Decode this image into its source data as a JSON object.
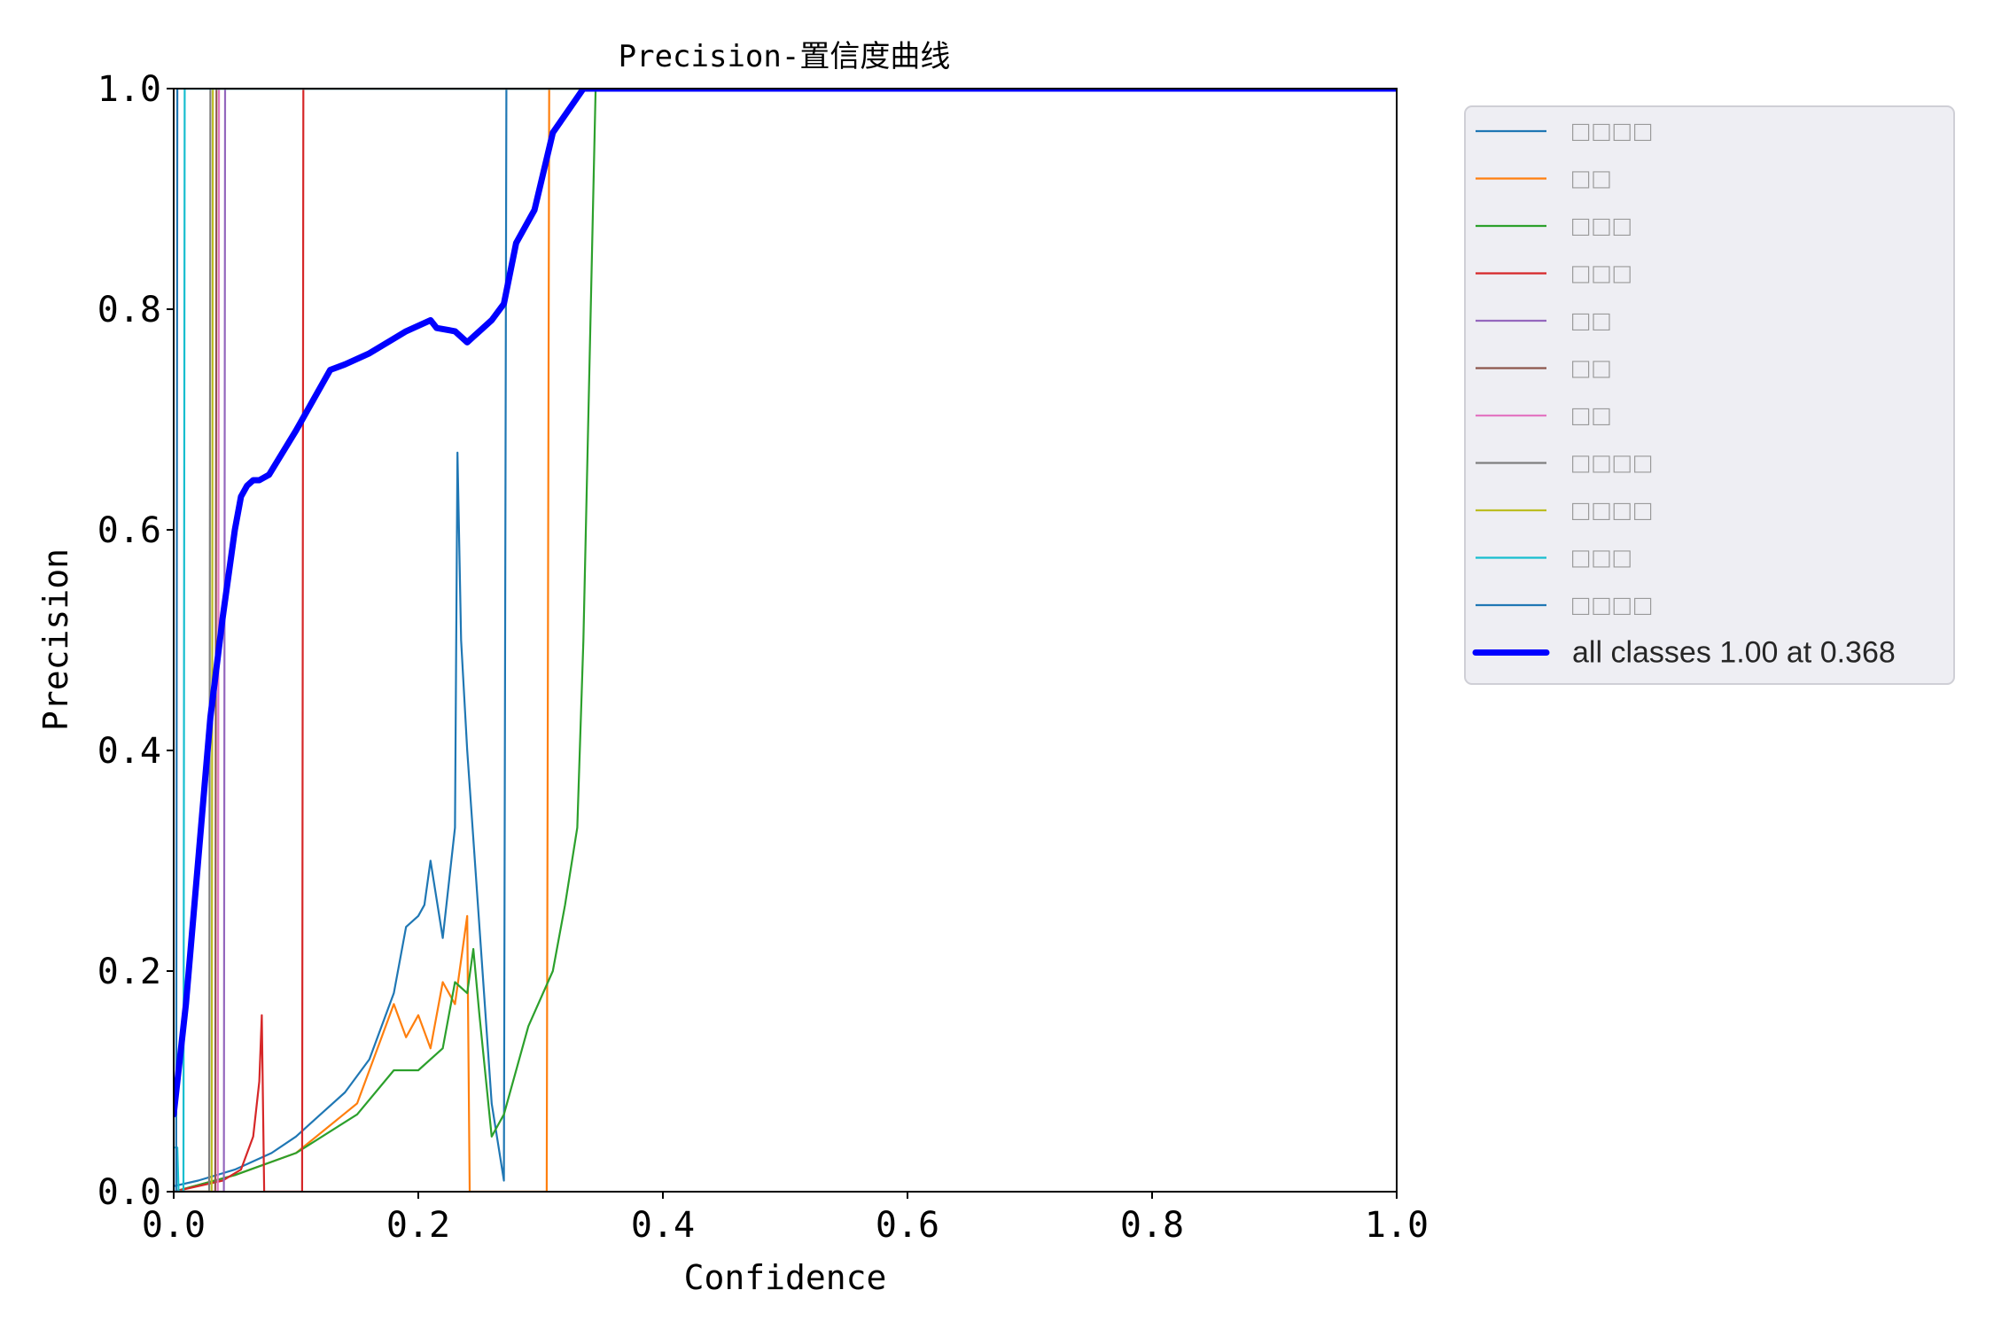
{
  "chart_data": {
    "type": "line",
    "title": "Precision-置信度曲线",
    "xlabel": "Confidence",
    "ylabel": "Precision",
    "xlim": [
      0,
      1
    ],
    "ylim": [
      0,
      1
    ],
    "xticks": [
      "0.0",
      "0.2",
      "0.4",
      "0.6",
      "0.8",
      "1.0"
    ],
    "yticks": [
      "0.0",
      "0.2",
      "0.4",
      "0.6",
      "0.8",
      "1.0"
    ],
    "legend_position": "outside-right",
    "series": [
      {
        "name": "□□□□",
        "color": "#1f77b4",
        "x": [
          0.0,
          0.02,
          0.05,
          0.08,
          0.1,
          0.12,
          0.14,
          0.16,
          0.18,
          0.19,
          0.2,
          0.205,
          0.21,
          0.22,
          0.23,
          0.232,
          0.235,
          0.24,
          0.26,
          0.27,
          0.272,
          1.0
        ],
        "y": [
          0.005,
          0.01,
          0.02,
          0.035,
          0.05,
          0.07,
          0.09,
          0.12,
          0.18,
          0.24,
          0.25,
          0.26,
          0.3,
          0.23,
          0.33,
          0.67,
          0.5,
          0.4,
          0.08,
          0.01,
          1.0,
          1.0
        ]
      },
      {
        "name": "□□",
        "color": "#ff7f0e",
        "x": [
          0.0,
          0.05,
          0.1,
          0.15,
          0.17,
          0.18,
          0.19,
          0.2,
          0.21,
          0.22,
          0.23,
          0.24,
          0.242,
          0.305,
          0.307,
          1.0
        ],
        "y": [
          0.0,
          0.015,
          0.035,
          0.08,
          0.14,
          0.17,
          0.14,
          0.16,
          0.13,
          0.19,
          0.17,
          0.25,
          0.0,
          0.0,
          1.0,
          1.0
        ]
      },
      {
        "name": "□□□",
        "color": "#2ca02c",
        "x": [
          0.0,
          0.05,
          0.1,
          0.15,
          0.18,
          0.2,
          0.22,
          0.23,
          0.24,
          0.245,
          0.25,
          0.26,
          0.27,
          0.29,
          0.31,
          0.32,
          0.33,
          0.335,
          0.345,
          1.0
        ],
        "y": [
          0.0,
          0.015,
          0.035,
          0.07,
          0.11,
          0.11,
          0.13,
          0.19,
          0.18,
          0.22,
          0.16,
          0.05,
          0.07,
          0.15,
          0.2,
          0.26,
          0.33,
          0.5,
          1.0,
          1.0
        ]
      },
      {
        "name": "□□□",
        "color": "#d62728",
        "x": [
          0.0,
          0.04,
          0.055,
          0.065,
          0.07,
          0.072,
          0.074,
          0.0745,
          0.105,
          0.106,
          1.0
        ],
        "y": [
          0.0,
          0.01,
          0.02,
          0.05,
          0.1,
          0.16,
          0.0,
          0.0,
          0.0,
          1.0,
          1.0
        ]
      },
      {
        "name": "□□",
        "color": "#9467bd",
        "x": [
          0.0,
          0.041,
          0.042,
          1.0
        ],
        "y": [
          0.0,
          0.0,
          1.0,
          1.0
        ]
      },
      {
        "name": "□□",
        "color": "#8c564b",
        "x": [
          0.0,
          0.034,
          0.035,
          1.0
        ],
        "y": [
          0.0,
          0.0,
          1.0,
          1.0
        ]
      },
      {
        "name": "□□",
        "color": "#e377c2",
        "x": [
          0.0,
          0.036,
          0.037,
          1.0
        ],
        "y": [
          0.0,
          0.0,
          1.0,
          1.0
        ]
      },
      {
        "name": "□□□□",
        "color": "#7f7f7f",
        "x": [
          0.0,
          0.029,
          0.03,
          1.0
        ],
        "y": [
          0.0,
          0.0,
          1.0,
          1.0
        ]
      },
      {
        "name": "□□□□",
        "color": "#bcbd22",
        "x": [
          0.0,
          0.031,
          0.032,
          1.0
        ],
        "y": [
          0.0,
          0.0,
          1.0,
          1.0
        ]
      },
      {
        "name": "□□□",
        "color": "#17becf",
        "x": [
          0.0,
          0.003,
          0.004,
          0.008,
          0.009,
          1.0
        ],
        "y": [
          0.04,
          0.04,
          0.0,
          0.0,
          1.0,
          1.0
        ]
      },
      {
        "name": "□□□□",
        "color": "#1f77b4",
        "x": [
          0.0,
          0.002,
          0.003,
          0.004,
          1.0
        ],
        "y": [
          0.0,
          0.0,
          1.0,
          1.0,
          1.0
        ]
      }
    ],
    "all_classes": {
      "name": "all classes 1.00 at 0.368",
      "color": "#0000ff",
      "x": [
        0.0,
        0.01,
        0.02,
        0.03,
        0.04,
        0.05,
        0.055,
        0.06,
        0.065,
        0.07,
        0.078,
        0.1,
        0.128,
        0.14,
        0.16,
        0.19,
        0.2,
        0.21,
        0.215,
        0.23,
        0.24,
        0.245,
        0.25,
        0.26,
        0.27,
        0.28,
        0.295,
        0.31,
        0.335,
        0.36,
        0.368,
        1.0
      ],
      "y": [
        0.07,
        0.17,
        0.3,
        0.43,
        0.52,
        0.6,
        0.63,
        0.64,
        0.645,
        0.645,
        0.65,
        0.69,
        0.745,
        0.75,
        0.76,
        0.78,
        0.785,
        0.79,
        0.783,
        0.78,
        0.77,
        0.775,
        0.78,
        0.79,
        0.805,
        0.86,
        0.89,
        0.96,
        1.0,
        1.0,
        1.0,
        1.0
      ]
    }
  }
}
